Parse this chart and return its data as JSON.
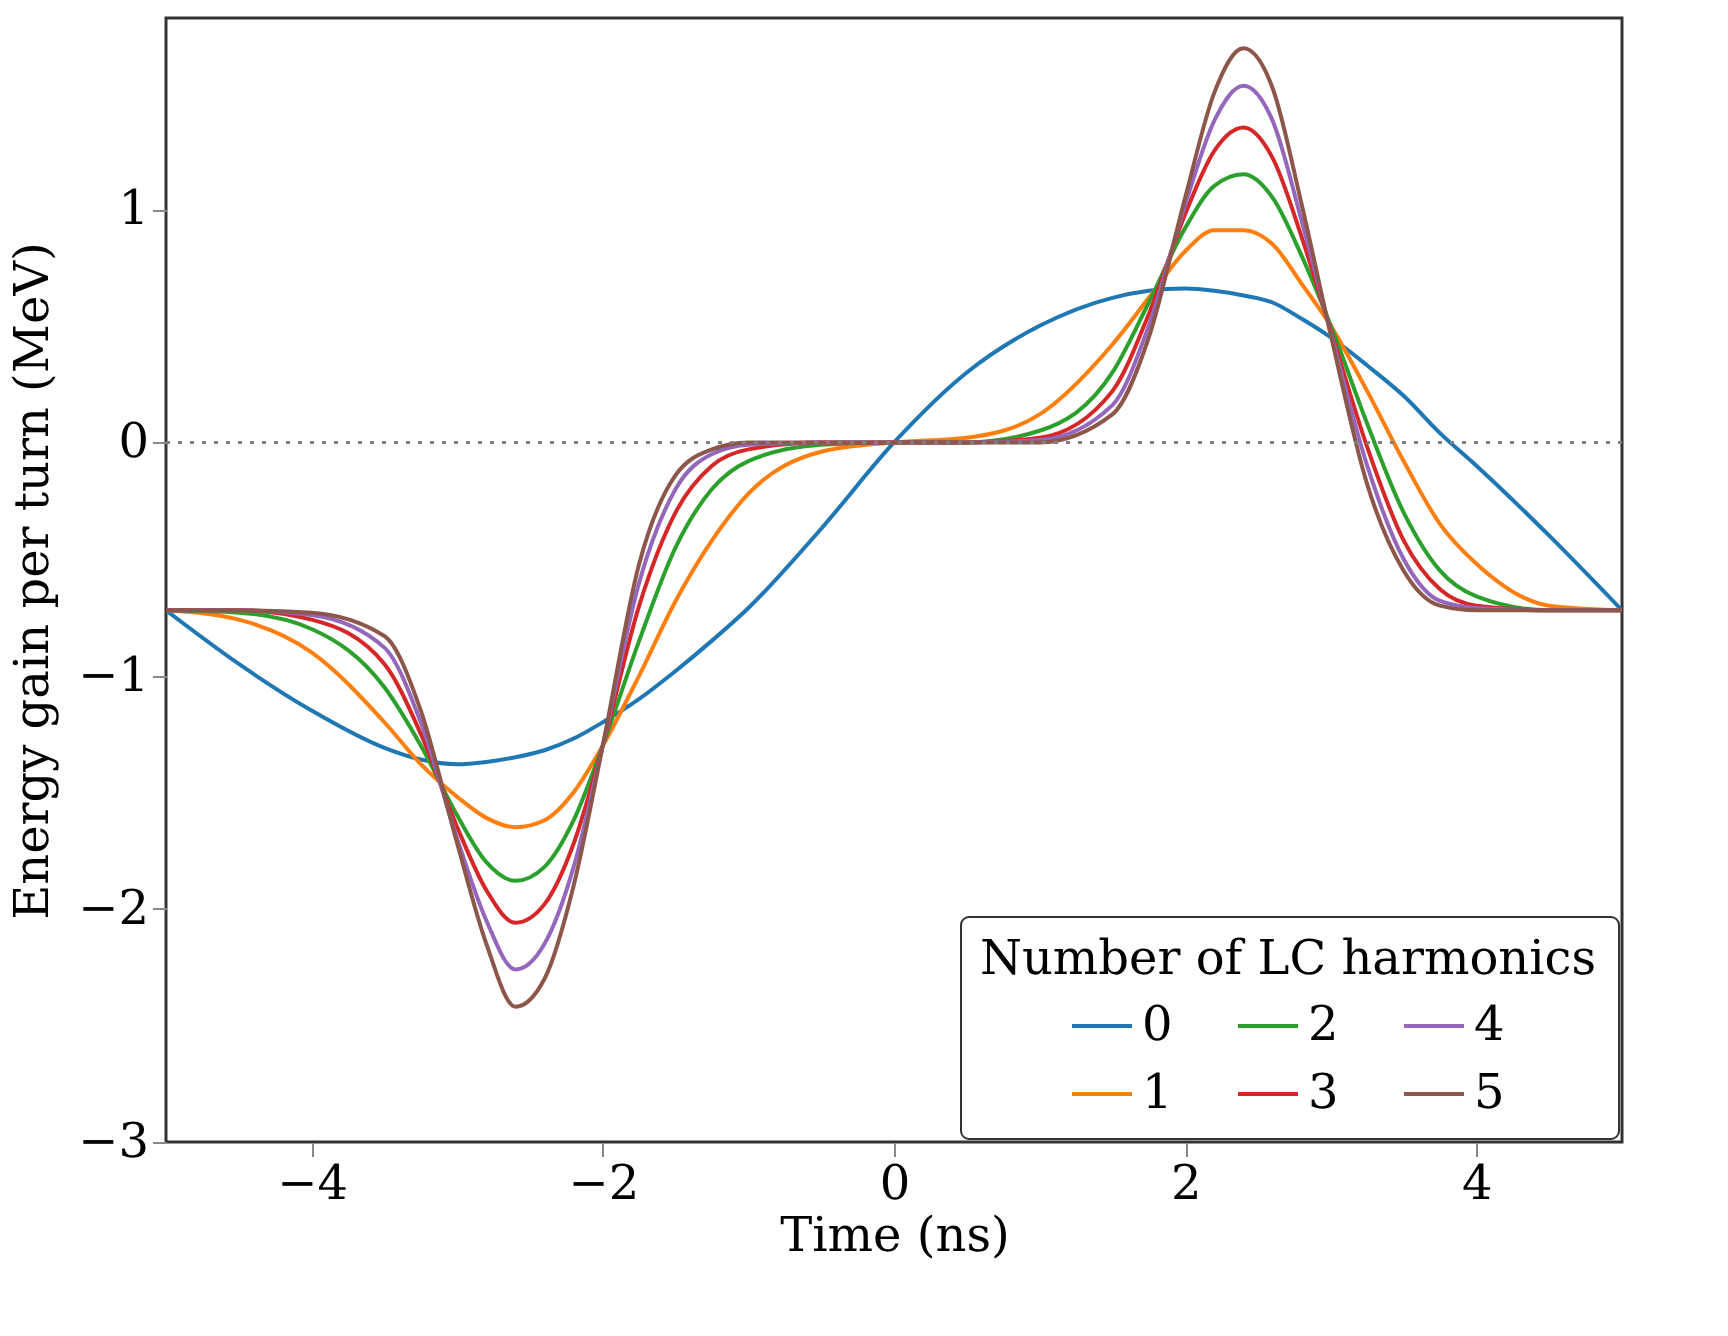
{
  "chart_data": {
    "type": "line",
    "xlabel": "Time (ns)",
    "ylabel": "Energy gain per turn (MeV)",
    "legend_title": "Number of LC harmonics",
    "x": [
      -5,
      -4.5,
      -4,
      -3.5,
      -3.25,
      -3,
      -2.8,
      -2.6,
      -2.4,
      -2.2,
      -2,
      -1.75,
      -1.5,
      -1.25,
      -1,
      -0.5,
      0,
      0.5,
      1,
      1.5,
      1.75,
      2,
      2.2,
      2.4,
      2.6,
      2.8,
      3,
      3.25,
      3.5,
      3.75,
      4,
      4.5,
      5
    ],
    "series": [
      {
        "name": "0",
        "color": "#1f77b4",
        "values": [
          -0.72,
          -0.95,
          -1.15,
          -1.31,
          -1.36,
          -1.38,
          -1.37,
          -1.35,
          -1.32,
          -1.27,
          -1.2,
          -1.1,
          -0.98,
          -0.85,
          -0.71,
          -0.37,
          0,
          0.3,
          0.5,
          0.62,
          0.65,
          0.66,
          0.65,
          0.63,
          0.6,
          0.53,
          0.45,
          0.33,
          0.2,
          0.04,
          -0.1,
          -0.4,
          -0.72
        ]
      },
      {
        "name": "1",
        "color": "#ff7f0e",
        "values": [
          -0.72,
          -0.76,
          -0.9,
          -1.2,
          -1.38,
          -1.52,
          -1.61,
          -1.65,
          -1.62,
          -1.5,
          -1.3,
          -1.0,
          -0.68,
          -0.42,
          -0.22,
          -0.04,
          0,
          0.02,
          0.12,
          0.42,
          0.62,
          0.82,
          0.91,
          0.91,
          0.85,
          0.68,
          0.5,
          0.22,
          -0.08,
          -0.35,
          -0.52,
          -0.7,
          -0.72
        ]
      },
      {
        "name": "2",
        "color": "#2ca02c",
        "values": [
          -0.72,
          -0.73,
          -0.8,
          -1.05,
          -1.3,
          -1.6,
          -1.8,
          -1.88,
          -1.82,
          -1.62,
          -1.3,
          -0.85,
          -0.45,
          -0.2,
          -0.08,
          -0.01,
          0,
          0,
          0.05,
          0.3,
          0.6,
          0.92,
          1.1,
          1.15,
          1.05,
          0.8,
          0.5,
          0.08,
          -0.3,
          -0.55,
          -0.66,
          -0.72,
          -0.72
        ]
      },
      {
        "name": "3",
        "color": "#d62728",
        "values": [
          -0.72,
          -0.72,
          -0.76,
          -0.95,
          -1.25,
          -1.65,
          -1.92,
          -2.06,
          -1.98,
          -1.72,
          -1.3,
          -0.7,
          -0.3,
          -0.1,
          -0.03,
          0,
          0,
          0,
          0.02,
          0.22,
          0.55,
          0.98,
          1.25,
          1.35,
          1.22,
          0.88,
          0.48,
          -0.02,
          -0.42,
          -0.63,
          -0.7,
          -0.72,
          -0.72
        ]
      },
      {
        "name": "4",
        "color": "#9467bd",
        "values": [
          -0.72,
          -0.72,
          -0.74,
          -0.88,
          -1.2,
          -1.7,
          -2.05,
          -2.26,
          -2.15,
          -1.82,
          -1.3,
          -0.6,
          -0.2,
          -0.05,
          -0.01,
          0,
          0,
          0,
          0.01,
          0.16,
          0.5,
          1.02,
          1.38,
          1.53,
          1.38,
          0.95,
          0.47,
          -0.1,
          -0.5,
          -0.68,
          -0.71,
          -0.72,
          -0.72
        ]
      },
      {
        "name": "5",
        "color": "#8c564b",
        "values": [
          -0.72,
          -0.72,
          -0.73,
          -0.83,
          -1.15,
          -1.72,
          -2.15,
          -2.42,
          -2.3,
          -1.9,
          -1.3,
          -0.52,
          -0.14,
          -0.03,
          0,
          0,
          0,
          0,
          0,
          0.12,
          0.45,
          1.05,
          1.5,
          1.69,
          1.52,
          1.02,
          0.46,
          -0.18,
          -0.55,
          -0.7,
          -0.72,
          -0.72,
          -0.72
        ]
      }
    ],
    "xlim": [
      -5,
      5
    ],
    "ylim": [
      -3,
      1.82
    ],
    "xticks": [
      -4,
      -2,
      0,
      2,
      4
    ],
    "yticks": [
      -3,
      -2,
      -1,
      0,
      1
    ],
    "ref_lines": [
      {
        "axis": "y",
        "value": 0,
        "color": "#808080",
        "line_style": "dotted"
      }
    ],
    "grid": false,
    "legend": "bottom right"
  }
}
